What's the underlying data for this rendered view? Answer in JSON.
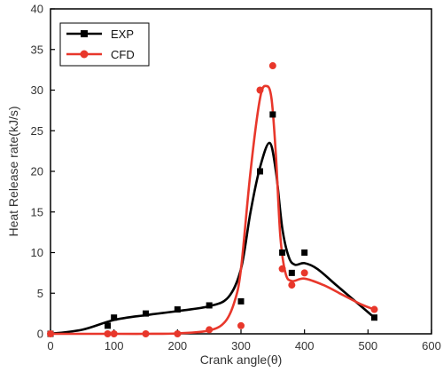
{
  "chart_data": {
    "type": "scatter",
    "xlabel": "Crank angle(θ)",
    "ylabel": "Heat Release rate(kJ/s)",
    "xlim": [
      0,
      600
    ],
    "ylim": [
      0,
      40
    ],
    "xticks": [
      "0",
      "100",
      "200",
      "300",
      "400",
      "500",
      "600"
    ],
    "yticks": [
      "0",
      "5",
      "10",
      "15",
      "20",
      "25",
      "30",
      "35",
      "40"
    ],
    "grid": false,
    "legend_position": "top-left",
    "series": [
      {
        "name": "EXP",
        "color": "#000000",
        "marker": "square",
        "points": [
          [
            0,
            0
          ],
          [
            90,
            1
          ],
          [
            100,
            2
          ],
          [
            150,
            2.5
          ],
          [
            200,
            3
          ],
          [
            250,
            3.5
          ],
          [
            300,
            4
          ],
          [
            330,
            20
          ],
          [
            350,
            27
          ],
          [
            365,
            10
          ],
          [
            380,
            7.5
          ],
          [
            400,
            10
          ],
          [
            510,
            2
          ]
        ],
        "fit_curve": [
          [
            0,
            0
          ],
          [
            50,
            0.5
          ],
          [
            100,
            1.7
          ],
          [
            150,
            2.3
          ],
          [
            200,
            2.8
          ],
          [
            250,
            3.4
          ],
          [
            280,
            4.5
          ],
          [
            300,
            8
          ],
          [
            315,
            15
          ],
          [
            330,
            20.5
          ],
          [
            345,
            23.5
          ],
          [
            355,
            20
          ],
          [
            365,
            13
          ],
          [
            375,
            9.5
          ],
          [
            385,
            8.5
          ],
          [
            400,
            8.7
          ],
          [
            420,
            8
          ],
          [
            450,
            6
          ],
          [
            480,
            4
          ],
          [
            510,
            2
          ]
        ]
      },
      {
        "name": "CFD",
        "color": "#e8372b",
        "marker": "circle",
        "points": [
          [
            0,
            0
          ],
          [
            90,
            0
          ],
          [
            100,
            0
          ],
          [
            150,
            0
          ],
          [
            200,
            0
          ],
          [
            250,
            0.5
          ],
          [
            300,
            1
          ],
          [
            330,
            30
          ],
          [
            350,
            33
          ],
          [
            365,
            8
          ],
          [
            380,
            6
          ],
          [
            400,
            7.5
          ],
          [
            510,
            3
          ]
        ],
        "fit_curve": [
          [
            0,
            0
          ],
          [
            100,
            0
          ],
          [
            150,
            0
          ],
          [
            200,
            0.05
          ],
          [
            250,
            0.4
          ],
          [
            275,
            1.5
          ],
          [
            290,
            4
          ],
          [
            300,
            8
          ],
          [
            315,
            20
          ],
          [
            330,
            29
          ],
          [
            340,
            30.5
          ],
          [
            348,
            29
          ],
          [
            355,
            22
          ],
          [
            362,
            12
          ],
          [
            370,
            7.5
          ],
          [
            380,
            6.5
          ],
          [
            400,
            6.8
          ],
          [
            430,
            6
          ],
          [
            460,
            4.8
          ],
          [
            490,
            3.6
          ],
          [
            510,
            3
          ]
        ]
      }
    ]
  }
}
